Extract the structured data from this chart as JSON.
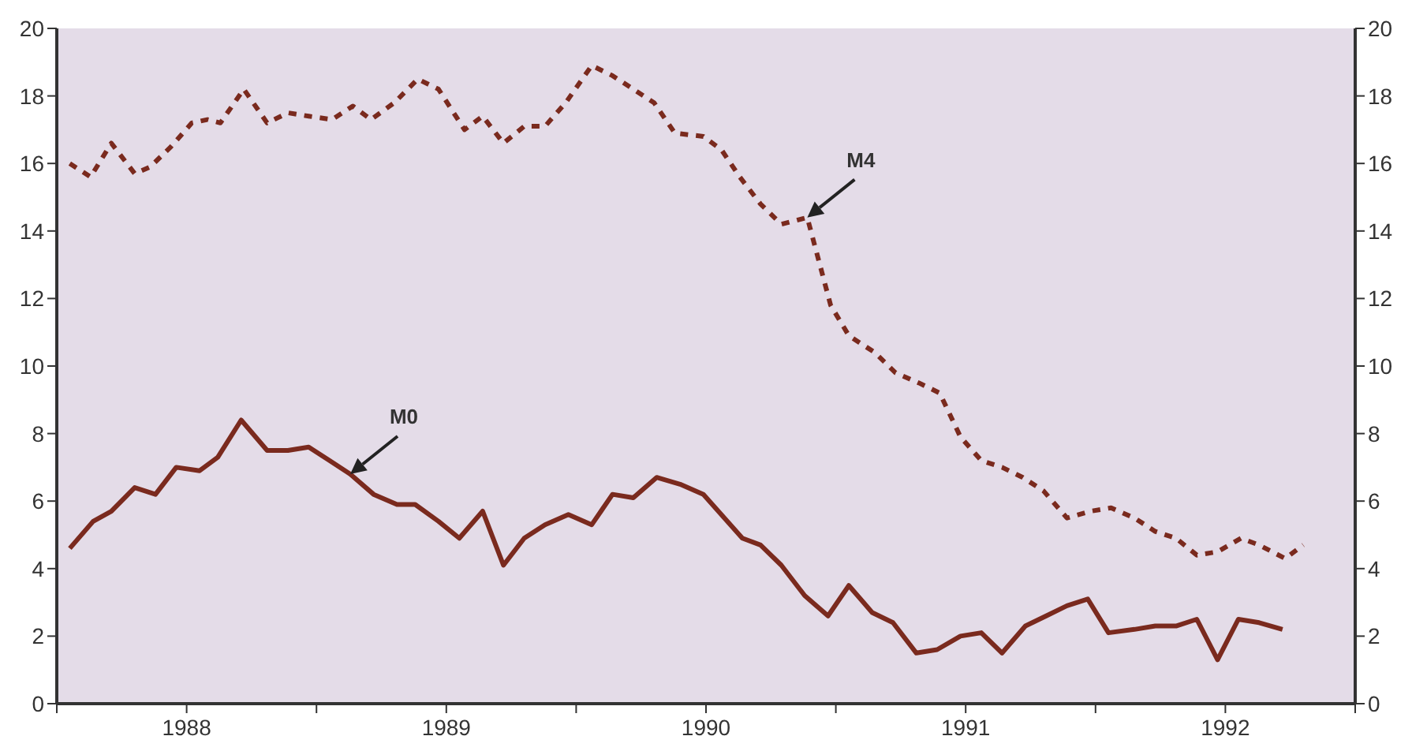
{
  "chart_data": {
    "type": "line",
    "xlim": [
      1988,
      1993
    ],
    "xticks": [
      {
        "value": 1988,
        "label": null
      },
      {
        "value": 1988.5,
        "label": "1988"
      },
      {
        "value": 1989,
        "label": null
      },
      {
        "value": 1989.5,
        "label": "1989"
      },
      {
        "value": 1990,
        "label": null
      },
      {
        "value": 1990.5,
        "label": "1990"
      },
      {
        "value": 1991,
        "label": null
      },
      {
        "value": 1991.5,
        "label": "1991"
      },
      {
        "value": 1992,
        "label": null
      },
      {
        "value": 1992.5,
        "label": "1992"
      },
      {
        "value": 1993,
        "label": null
      }
    ],
    "ylim": [
      0,
      20
    ],
    "yticks": [
      0,
      2,
      4,
      6,
      8,
      10,
      12,
      14,
      16,
      18,
      20
    ],
    "y2lim": [
      0,
      20
    ],
    "y2ticks": [
      0,
      2,
      4,
      6,
      8,
      10,
      12,
      14,
      16,
      18,
      20
    ],
    "grid": false,
    "legend": false,
    "series": [
      {
        "name": "M4",
        "color": "#7a2a1e",
        "line_style": "dashed",
        "x": [
          1988.05,
          1988.13,
          1988.21,
          1988.3,
          1988.36,
          1988.44,
          1988.52,
          1988.58,
          1988.63,
          1988.72,
          1988.81,
          1988.89,
          1988.97,
          1989.06,
          1989.14,
          1989.21,
          1989.3,
          1989.39,
          1989.47,
          1989.57,
          1989.64,
          1989.72,
          1989.8,
          1989.88,
          1989.96,
          1990.06,
          1990.14,
          1990.22,
          1990.3,
          1990.38,
          1990.49,
          1990.56,
          1990.63,
          1990.71,
          1990.79,
          1990.89,
          1990.98,
          1991.05,
          1991.15,
          1991.23,
          1991.32,
          1991.4,
          1991.48,
          1991.56,
          1991.64,
          1991.72,
          1991.8,
          1991.89,
          1991.98,
          1992.06,
          1992.15,
          1992.23,
          1992.31,
          1992.39,
          1992.47,
          1992.56,
          1992.63,
          1992.73,
          1992.8
        ],
        "values": [
          16.0,
          15.6,
          16.6,
          15.7,
          15.9,
          16.5,
          17.2,
          17.3,
          17.2,
          18.2,
          17.2,
          17.5,
          17.4,
          17.3,
          17.7,
          17.3,
          17.8,
          18.5,
          18.2,
          17.0,
          17.4,
          16.6,
          17.1,
          17.1,
          17.8,
          18.9,
          18.6,
          18.2,
          17.8,
          16.9,
          16.8,
          16.4,
          15.6,
          14.8,
          14.2,
          14.4,
          11.8,
          10.9,
          10.4,
          9.8,
          9.5,
          9.2,
          7.9,
          7.2,
          7.0,
          6.7,
          6.3,
          5.5,
          5.7,
          5.8,
          5.5,
          5.1,
          4.9,
          4.4,
          4.5,
          4.9,
          4.7,
          4.3,
          4.7
        ]
      },
      {
        "name": "M0",
        "color": "#7a2a1e",
        "line_style": "solid",
        "x": [
          1988.05,
          1988.14,
          1988.21,
          1988.3,
          1988.38,
          1988.46,
          1988.55,
          1988.62,
          1988.71,
          1988.81,
          1988.89,
          1988.97,
          1989.05,
          1989.13,
          1989.22,
          1989.31,
          1989.38,
          1989.47,
          1989.55,
          1989.64,
          1989.72,
          1989.8,
          1989.88,
          1989.97,
          1990.06,
          1990.14,
          1990.22,
          1990.31,
          1990.4,
          1990.49,
          1990.64,
          1990.71,
          1990.79,
          1990.88,
          1990.97,
          1991.05,
          1991.14,
          1991.22,
          1991.31,
          1991.39,
          1991.48,
          1991.56,
          1991.64,
          1991.73,
          1991.81,
          1991.89,
          1991.97,
          1992.05,
          1992.15,
          1992.23,
          1992.31,
          1992.39,
          1992.47,
          1992.55,
          1992.63,
          1992.72
        ],
        "values": [
          4.6,
          5.4,
          5.7,
          6.4,
          6.2,
          7.0,
          6.9,
          7.3,
          8.4,
          7.5,
          7.5,
          7.6,
          7.2,
          6.8,
          6.2,
          5.9,
          5.9,
          5.4,
          4.9,
          5.7,
          4.1,
          4.9,
          5.3,
          5.6,
          5.3,
          6.2,
          6.1,
          6.7,
          6.5,
          6.2,
          4.9,
          4.7,
          4.1,
          3.2,
          2.6,
          3.5,
          2.7,
          2.4,
          1.5,
          1.6,
          2.0,
          2.1,
          1.5,
          2.3,
          2.6,
          2.9,
          3.1,
          2.1,
          2.2,
          2.3,
          2.3,
          2.5,
          1.3,
          2.5,
          2.4,
          2.2
        ]
      }
    ]
  }
}
